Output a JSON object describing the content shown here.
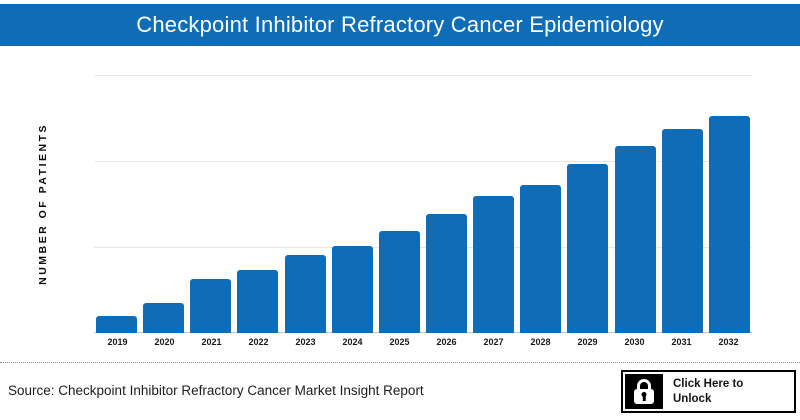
{
  "header": {
    "title": "Checkpoint Inhibitor Refractory Cancer Epidemiology",
    "background_color": "#0e6db6",
    "text_color": "#ffffff"
  },
  "chart_data": {
    "type": "bar",
    "title": "Checkpoint Inhibitor Refractory Cancer Epidemiology",
    "categories": [
      "2019",
      "2020",
      "2021",
      "2022",
      "2023",
      "2024",
      "2025",
      "2026",
      "2027",
      "2028",
      "2029",
      "2030",
      "2031",
      "2032"
    ],
    "relative_values": [
      8,
      14,
      25,
      29,
      36,
      40,
      47,
      55,
      63,
      68,
      78,
      86,
      94,
      100
    ],
    "values_note": "y-axis tick values hidden in source image; relative_values are bar heights as % of tallest (2032) bar estimated from pixels",
    "y_axis_values_visible": false,
    "xlabel": "",
    "ylabel": "NUMBER OF PATIENTS",
    "bar_color": "#0e6db6",
    "grid": "horizontal",
    "gridline_count": 3,
    "legend": "none"
  },
  "footer": {
    "source_text": "Source: Checkpoint Inhibitor Refractory Cancer Market Insight Report"
  },
  "unlock_button": {
    "line1": "Click Here to",
    "line2": "Unlock",
    "icon": "lock-icon"
  }
}
